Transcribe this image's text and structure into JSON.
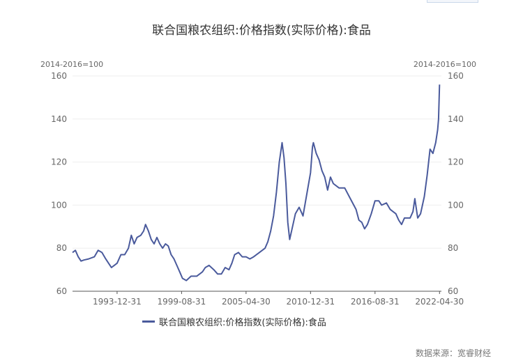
{
  "title": "联合国粮农组织:价格指数(实际价格):食品",
  "unit_left": "2014-2016=100",
  "unit_right": "2014-2016=100",
  "legend_label": "联合国粮农组织:价格指数(实际价格):食品",
  "source": "数据来源：宽睿财经",
  "colors": {
    "line": "#4a5a9c",
    "axis": "#555555",
    "grid": "#eeeeee"
  },
  "chart_data": {
    "type": "line",
    "title": "联合国粮农组织:价格指数(实际价格):食品",
    "ylabel": "2014-2016=100",
    "ylim": [
      60,
      160
    ],
    "y_ticks": [
      60,
      80,
      100,
      120,
      140,
      160
    ],
    "x_tick_labels": [
      "1993-12-31",
      "1999-08-31",
      "2005-04-30",
      "2010-12-31",
      "2016-08-31",
      "2022-04-30"
    ],
    "xlim": [
      "1990-01",
      "2022-06"
    ],
    "grid": "horizontal",
    "legend": "bottom",
    "series": [
      {
        "name": "联合国粮农组织:价格指数(实际价格):食品",
        "points": [
          [
            "1990-01",
            78
          ],
          [
            "1990-04",
            79
          ],
          [
            "1990-07",
            76
          ],
          [
            "1990-10",
            74
          ],
          [
            "1991-01",
            74.5
          ],
          [
            "1991-06",
            75
          ],
          [
            "1991-12",
            76
          ],
          [
            "1992-04",
            79
          ],
          [
            "1992-08",
            78
          ],
          [
            "1992-12",
            75
          ],
          [
            "1993-03",
            73
          ],
          [
            "1993-06",
            71
          ],
          [
            "1993-09",
            72
          ],
          [
            "1993-12",
            73
          ],
          [
            "1994-04",
            77
          ],
          [
            "1994-08",
            77
          ],
          [
            "1994-12",
            80
          ],
          [
            "1995-03",
            86
          ],
          [
            "1995-06",
            82
          ],
          [
            "1995-09",
            85
          ],
          [
            "1996-01",
            86
          ],
          [
            "1996-04",
            88
          ],
          [
            "1996-06",
            91
          ],
          [
            "1996-09",
            88
          ],
          [
            "1996-12",
            84
          ],
          [
            "1997-03",
            82
          ],
          [
            "1997-06",
            85
          ],
          [
            "1997-09",
            82
          ],
          [
            "1997-12",
            80
          ],
          [
            "1998-03",
            82
          ],
          [
            "1998-06",
            81
          ],
          [
            "1998-09",
            77
          ],
          [
            "1998-12",
            75
          ],
          [
            "1999-03",
            72
          ],
          [
            "1999-06",
            69
          ],
          [
            "1999-09",
            66
          ],
          [
            "2000-01",
            65
          ],
          [
            "2000-06",
            67
          ],
          [
            "2000-12",
            67
          ],
          [
            "2001-06",
            69
          ],
          [
            "2001-09",
            71
          ],
          [
            "2002-01",
            72
          ],
          [
            "2002-06",
            70
          ],
          [
            "2002-10",
            68
          ],
          [
            "2003-02",
            68
          ],
          [
            "2003-06",
            71
          ],
          [
            "2003-10",
            70
          ],
          [
            "2004-01",
            73
          ],
          [
            "2004-04",
            77
          ],
          [
            "2004-08",
            78
          ],
          [
            "2004-12",
            76
          ],
          [
            "2005-04",
            76
          ],
          [
            "2005-08",
            75
          ],
          [
            "2005-12",
            76
          ],
          [
            "2006-06",
            78
          ],
          [
            "2006-12",
            80
          ],
          [
            "2007-03",
            83
          ],
          [
            "2007-06",
            88
          ],
          [
            "2007-09",
            95
          ],
          [
            "2007-12",
            106
          ],
          [
            "2008-03",
            120
          ],
          [
            "2008-05",
            126
          ],
          [
            "2008-06",
            129
          ],
          [
            "2008-08",
            122
          ],
          [
            "2008-10",
            110
          ],
          [
            "2008-12",
            92
          ],
          [
            "2009-02",
            84
          ],
          [
            "2009-05",
            90
          ],
          [
            "2009-08",
            96
          ],
          [
            "2009-12",
            99
          ],
          [
            "2010-04",
            95
          ],
          [
            "2010-08",
            105
          ],
          [
            "2010-12",
            115
          ],
          [
            "2011-02",
            127
          ],
          [
            "2011-03",
            129
          ],
          [
            "2011-06",
            124
          ],
          [
            "2011-09",
            121
          ],
          [
            "2011-12",
            116
          ],
          [
            "2012-03",
            113
          ],
          [
            "2012-06",
            107
          ],
          [
            "2012-09",
            113
          ],
          [
            "2012-12",
            110
          ],
          [
            "2013-06",
            108
          ],
          [
            "2013-12",
            108
          ],
          [
            "2014-06",
            103
          ],
          [
            "2014-12",
            98
          ],
          [
            "2015-03",
            93
          ],
          [
            "2015-06",
            92
          ],
          [
            "2015-09",
            89
          ],
          [
            "2015-12",
            91
          ],
          [
            "2016-04",
            96
          ],
          [
            "2016-08",
            102
          ],
          [
            "2016-12",
            102
          ],
          [
            "2017-03",
            100
          ],
          [
            "2017-08",
            101
          ],
          [
            "2017-12",
            98
          ],
          [
            "2018-03",
            97
          ],
          [
            "2018-06",
            96
          ],
          [
            "2018-09",
            93
          ],
          [
            "2018-12",
            91
          ],
          [
            "2019-03",
            94
          ],
          [
            "2019-06",
            94
          ],
          [
            "2019-09",
            94
          ],
          [
            "2019-12",
            97
          ],
          [
            "2020-02",
            103
          ],
          [
            "2020-05",
            94
          ],
          [
            "2020-08",
            96
          ],
          [
            "2020-12",
            104
          ],
          [
            "2021-03",
            114
          ],
          [
            "2021-06",
            126
          ],
          [
            "2021-09",
            124
          ],
          [
            "2021-12",
            129
          ],
          [
            "2022-02",
            135
          ],
          [
            "2022-03",
            140
          ],
          [
            "2022-04",
            156
          ]
        ]
      }
    ]
  }
}
